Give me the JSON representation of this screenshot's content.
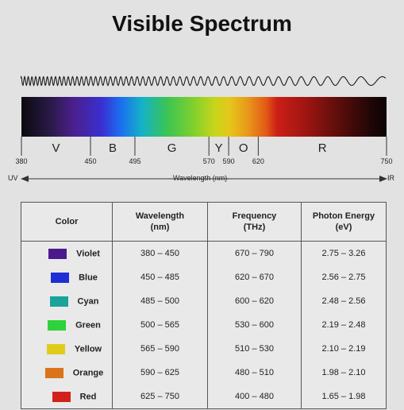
{
  "title": "Visible Spectrum",
  "scale": {
    "min": 380,
    "max": 750,
    "ticks": [
      380,
      450,
      495,
      570,
      590,
      620,
      750
    ],
    "bands": [
      {
        "label": "V",
        "from": 380,
        "to": 450
      },
      {
        "label": "B",
        "from": 450,
        "to": 495
      },
      {
        "label": "G",
        "from": 495,
        "to": 570
      },
      {
        "label": "Y",
        "from": 570,
        "to": 590
      },
      {
        "label": "O",
        "from": 590,
        "to": 620
      },
      {
        "label": "R",
        "from": 620,
        "to": 750
      }
    ],
    "uv_label": "UV",
    "ir_label": "IR",
    "axis_label": "Wavelength (nm)"
  },
  "table": {
    "headers": {
      "color": "Color",
      "wavelength": [
        "Wavelength",
        "(nm)"
      ],
      "frequency": [
        "Frequency",
        "(THz)"
      ],
      "energy": [
        "Photon Energy",
        "(eV)"
      ]
    },
    "rows": [
      {
        "name": "Violet",
        "swatch": "#4a1a8c",
        "wavelength": "380 – 450",
        "frequency": "670 – 790",
        "energy": "2.75 – 3.26"
      },
      {
        "name": "Blue",
        "swatch": "#1f2fd6",
        "wavelength": "450 – 485",
        "frequency": "620 – 670",
        "energy": "2.56 – 2.75"
      },
      {
        "name": "Cyan",
        "swatch": "#1aa39a",
        "wavelength": "485 – 500",
        "frequency": "600 – 620",
        "energy": "2.48 – 2.56"
      },
      {
        "name": "Green",
        "swatch": "#2ed23a",
        "wavelength": "500 – 565",
        "frequency": "530 – 600",
        "energy": "2.19 – 2.48"
      },
      {
        "name": "Yellow",
        "swatch": "#e1cc1a",
        "wavelength": "565 – 590",
        "frequency": "510 – 530",
        "energy": "2.10 – 2.19"
      },
      {
        "name": "Orange",
        "swatch": "#d9741c",
        "wavelength": "590 – 625",
        "frequency": "480 – 510",
        "energy": "1.98 – 2.10"
      },
      {
        "name": "Red",
        "swatch": "#d3201b",
        "wavelength": "625 – 750",
        "frequency": "400 – 480",
        "energy": "1.65 – 1.98"
      }
    ]
  }
}
